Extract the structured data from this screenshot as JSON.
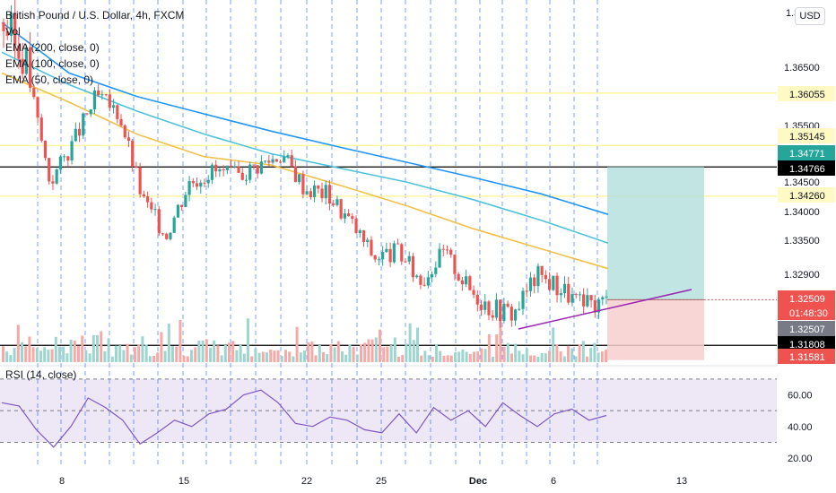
{
  "header": {
    "symbol": "British Pound / U.S. Dollar, 4h, FXCM",
    "currency_button": "USD"
  },
  "legend": [
    "Vol",
    "EMA (200, close, 0)",
    "EMA (100, close, 0)",
    "EMA (50, close, 0)"
  ],
  "rsi_legend": "RSI (14, close)",
  "colors": {
    "up": "#26a69a",
    "down": "#ef5350",
    "ema200": "#2196f3",
    "ema100": "#4fc3dc",
    "ema50": "#f0c24a",
    "rsi": "#7e57c2",
    "rsi_band": "#ede7f6",
    "profit_zone": "#b2dfdb",
    "loss_zone": "#f8cfcf",
    "support_line": "#000000",
    "trend_line": "#9c27b0",
    "grid_dash": "#2962ff",
    "yellow_level": "#fff59d"
  },
  "price_axis": {
    "labels": [
      "1.36500",
      "1.35500",
      "1.34500",
      "1.34000",
      "1.33500",
      "1.32900"
    ],
    "truncated_top": "1.3",
    "tags": [
      {
        "text": "1.36055",
        "value": 1.36055,
        "bg": "#fff9c4",
        "fg": "#131722"
      },
      {
        "text": "1.35145",
        "value": 1.35145,
        "bg": "#fff9c4",
        "fg": "#131722"
      },
      {
        "text": "1.34771",
        "value": 1.34771,
        "bg": "#26a69a",
        "fg": "#ffffff"
      },
      {
        "text": "1.34766",
        "value": 1.34766,
        "bg": "#000000",
        "fg": "#ffffff"
      },
      {
        "text": "1.34260",
        "value": 1.3426,
        "bg": "#fff9c4",
        "fg": "#131722"
      },
      {
        "text": "1.32509",
        "value": 1.32509,
        "bg": "#ef5350",
        "fg": "#ffffff"
      },
      {
        "text": "01:48:30",
        "value": 1.32509,
        "bg": "#ef5350",
        "fg": "#ffffff"
      },
      {
        "text": "1.32507",
        "value": 1.32507,
        "bg": "#787b86",
        "fg": "#ffffff"
      },
      {
        "text": "1.31808",
        "value": 1.31808,
        "bg": "#000000",
        "fg": "#ffffff"
      },
      {
        "text": "1.31581",
        "value": 1.31581,
        "bg": "#ef5350",
        "fg": "#ffffff"
      }
    ]
  },
  "rsi_axis": {
    "labels": [
      "60.00",
      "40.00",
      "20.00"
    ],
    "values": [
      60,
      40,
      20
    ]
  },
  "time_axis": {
    "labels": [
      "8",
      "15",
      "22",
      "25",
      "Dec",
      "6",
      "13"
    ]
  },
  "chart_data": {
    "type": "candlestick",
    "title": "British Pound / U.S. Dollar, 4h, FXCM",
    "price_range": [
      1.3155,
      1.3695
    ],
    "horizontal_levels": [
      {
        "value": 1.36055,
        "style": "yellow"
      },
      {
        "value": 1.35145,
        "style": "yellow"
      },
      {
        "value": 1.3426,
        "style": "yellow"
      },
      {
        "value": 1.34766,
        "style": "black"
      },
      {
        "value": 1.31808,
        "style": "black"
      }
    ],
    "position": {
      "entry": 1.32509,
      "target": 1.34766,
      "stop": 1.31581
    },
    "last_price": 1.32509,
    "ema200": [
      1.368,
      1.364,
      1.36,
      1.357,
      1.354,
      1.3512,
      1.3485,
      1.3458,
      1.343,
      1.3395
    ],
    "ema100": [
      1.366,
      1.362,
      1.3575,
      1.3535,
      1.35,
      1.3475,
      1.345,
      1.342,
      1.3385,
      1.3345
    ],
    "ema50": [
      1.364,
      1.359,
      1.3535,
      1.3495,
      1.348,
      1.3445,
      1.341,
      1.337,
      1.3335,
      1.33
    ],
    "price_path": [
      1.368,
      1.365,
      1.345,
      1.352,
      1.36,
      1.357,
      1.342,
      1.336,
      1.345,
      1.347,
      1.346,
      1.348,
      1.35,
      1.344,
      1.343,
      1.338,
      1.332,
      1.333,
      1.328,
      1.333,
      1.327,
      1.324,
      1.323,
      1.329,
      1.327,
      1.324,
      1.325
    ],
    "rsi": {
      "values": [
        55,
        53,
        38,
        27,
        40,
        58,
        52,
        44,
        29,
        36,
        44,
        40,
        48,
        51,
        60,
        63,
        55,
        42,
        40,
        46,
        44,
        38,
        36,
        48,
        36,
        52,
        44,
        50,
        40,
        55,
        47,
        40,
        48,
        51,
        44,
        47
      ],
      "levels": [
        70,
        50,
        30
      ],
      "range": [
        15,
        75
      ]
    },
    "volume_relative": [
      0.6,
      0.7,
      0.4,
      0.5,
      0.35,
      0.45,
      0.55,
      0.3,
      0.4,
      0.5
    ]
  }
}
